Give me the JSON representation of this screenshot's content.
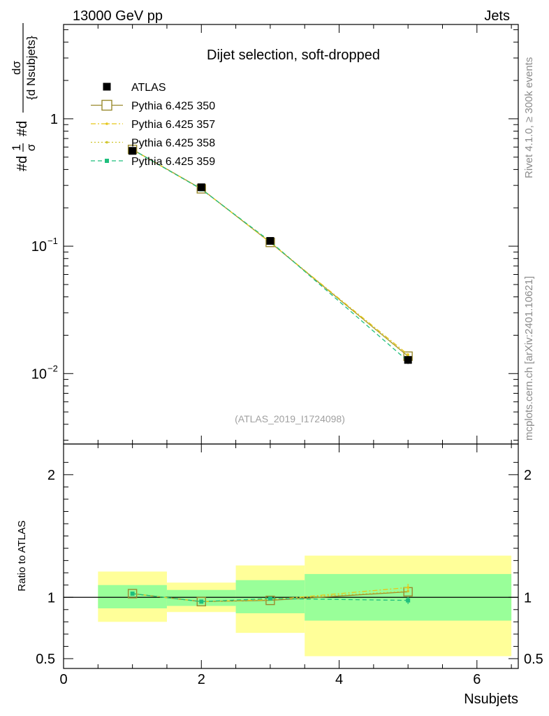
{
  "header": {
    "energy_label": "13000 GeV pp",
    "category_label": "Jets",
    "plot_title": "Dijet selection, soft-dropped",
    "analysis_id": "(ATLAS_2019_I1724098)",
    "side_rivet": "Rivet 4.1.0, ≥ 300k events",
    "side_mcplots": "mcplots.cern.ch [arXiv:2401.10621]"
  },
  "chart_data": [
    {
      "type": "line",
      "panel": "main",
      "xlabel": "Nsubjets",
      "ylabel": "#d¹⁄σ #d dσ⁄{d Nsubjets}",
      "ylabel_parts": {
        "a": "#d",
        "frac1_num": "1",
        "frac1_den": "σ",
        "b": "#d",
        "frac2_num": "dσ",
        "frac2_den": "{d Nsubjets}"
      },
      "yscale": "log",
      "xlim": [
        0,
        6.6
      ],
      "ylim": [
        0.0028,
        5.5
      ],
      "y_ticks": [
        {
          "value": 1,
          "label": "1"
        },
        {
          "value": 0.1,
          "label": "10",
          "exp": "−1"
        },
        {
          "value": 0.01,
          "label": "10",
          "exp": "−2"
        }
      ],
      "x_ticks": [
        0,
        2,
        4,
        6
      ],
      "legend_position": "top-left",
      "series": [
        {
          "name": "ATLAS",
          "color": "#000000",
          "marker": "filled-square",
          "x": [
            1,
            2,
            3,
            5
          ],
          "y": [
            0.56,
            0.29,
            0.11,
            0.0128
          ],
          "yerr": [
            0.03,
            0.015,
            0.006,
            0.0009
          ]
        },
        {
          "name": "Pythia 6.425 350",
          "color": "#9a8a2e",
          "marker": "open-square",
          "line": "solid",
          "x": [
            1,
            2,
            3,
            5
          ],
          "y": [
            0.575,
            0.282,
            0.107,
            0.0137
          ]
        },
        {
          "name": "Pythia 6.425 357",
          "color": "#e6c619",
          "marker": "small-dot",
          "line": "dashdot",
          "x": [
            1,
            2,
            3,
            5
          ],
          "y": [
            0.573,
            0.281,
            0.107,
            0.0141
          ]
        },
        {
          "name": "Pythia 6.425 358",
          "color": "#cfc52a",
          "marker": "small-dot",
          "line": "dotted",
          "x": [
            1,
            2,
            3,
            5
          ],
          "y": [
            0.572,
            0.281,
            0.108,
            0.0136
          ]
        },
        {
          "name": "Pythia 6.425 359",
          "color": "#1fbf7d",
          "marker": "small-square",
          "line": "dashed",
          "x": [
            1,
            2,
            3,
            5
          ],
          "y": [
            0.574,
            0.28,
            0.109,
            0.0125
          ]
        }
      ]
    },
    {
      "type": "line",
      "panel": "ratio",
      "xlabel": "Nsubjets",
      "ylabel": "Ratio to ATLAS",
      "ylim": [
        0.42,
        2.25
      ],
      "xlim": [
        0,
        6.6
      ],
      "y_ticks": [
        {
          "value": 0.5,
          "label": "0.5"
        },
        {
          "value": 1,
          "label": "1"
        },
        {
          "value": 2,
          "label": "2"
        }
      ],
      "x_ticks": [
        {
          "value": 0,
          "label": "0"
        },
        {
          "value": 2,
          "label": "2"
        },
        {
          "value": 4,
          "label": "4"
        },
        {
          "value": 6,
          "label": "6"
        }
      ],
      "bands": [
        {
          "xlo": 0.5,
          "xhi": 1.5,
          "stat_lo": 0.91,
          "stat_hi": 1.1,
          "tot_lo": 0.8,
          "tot_hi": 1.21
        },
        {
          "xlo": 1.5,
          "xhi": 2.5,
          "stat_lo": 0.93,
          "stat_hi": 1.06,
          "tot_lo": 0.88,
          "tot_hi": 1.12
        },
        {
          "xlo": 2.5,
          "xhi": 3.5,
          "stat_lo": 0.87,
          "stat_hi": 1.14,
          "tot_lo": 0.71,
          "tot_hi": 1.26
        },
        {
          "xlo": 3.5,
          "xhi": 6.5,
          "stat_lo": 0.81,
          "stat_hi": 1.19,
          "tot_lo": 0.52,
          "tot_hi": 1.34
        }
      ],
      "band_colors": {
        "stat": "#99ff99",
        "total": "#ffff99"
      },
      "series": [
        {
          "name": "Pythia 6.425 350",
          "color": "#9a8a2e",
          "marker": "open-square",
          "line": "solid",
          "x": [
            1,
            2,
            3,
            5
          ],
          "y": [
            1.03,
            0.965,
            0.975,
            1.045
          ]
        },
        {
          "name": "Pythia 6.425 357",
          "color": "#e6c619",
          "marker": "small-dot",
          "line": "dashdot",
          "x": [
            1,
            2,
            3,
            5
          ],
          "y": [
            1.03,
            0.965,
            0.98,
            1.08
          ],
          "yerr": [
            0,
            0,
            0,
            0.03
          ]
        },
        {
          "name": "Pythia 6.425 358",
          "color": "#cfc52a",
          "marker": "small-dot",
          "line": "dotted",
          "x": [
            1,
            2,
            3,
            5
          ],
          "y": [
            1.03,
            0.965,
            0.985,
            1.05
          ]
        },
        {
          "name": "Pythia 6.425 359",
          "color": "#1fbf7d",
          "marker": "small-square",
          "line": "dashed",
          "x": [
            1,
            2,
            3,
            5
          ],
          "y": [
            1.03,
            0.965,
            0.99,
            0.975
          ],
          "yerr": [
            0,
            0,
            0.015,
            0.03
          ]
        }
      ]
    }
  ]
}
